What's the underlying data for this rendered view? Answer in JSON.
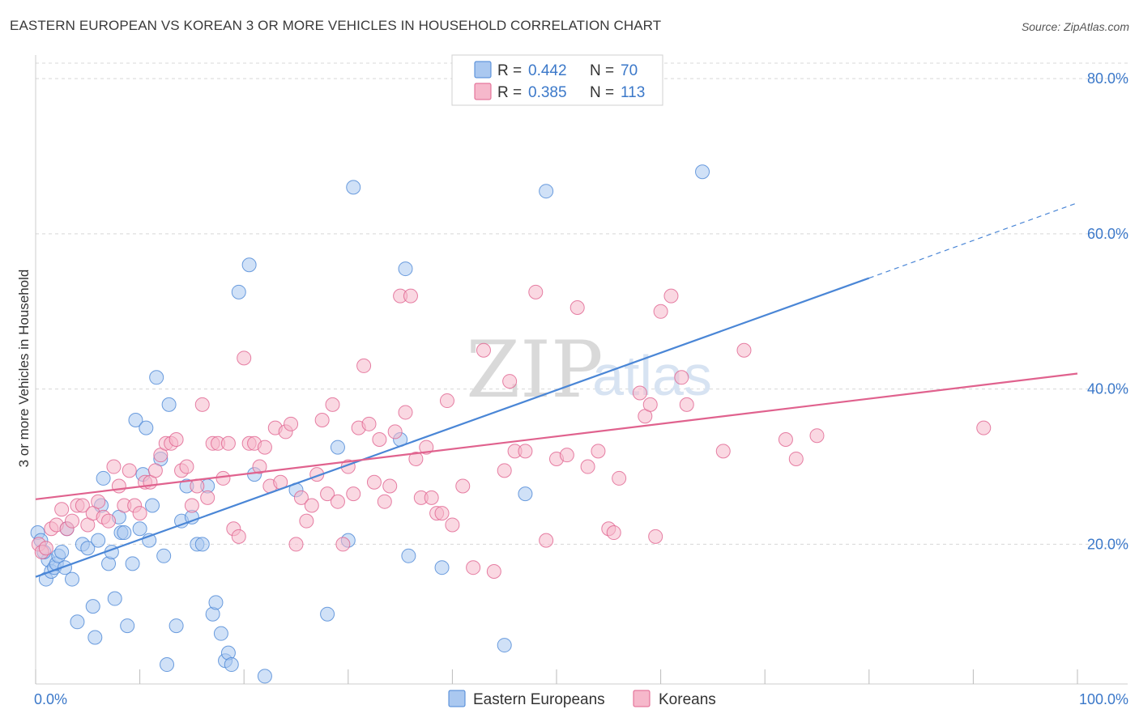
{
  "header": {
    "title": "EASTERN EUROPEAN VS KOREAN 3 OR MORE VEHICLES IN HOUSEHOLD CORRELATION CHART",
    "source": "Source: ZipAtlas.com"
  },
  "watermark": {
    "zip": "ZIP",
    "atlas": "atlas"
  },
  "legend": {
    "items": [
      {
        "r_label": "R =",
        "r_value": "0.442",
        "n_label": "N =",
        "n_value": "70",
        "color": "#aac8f0"
      },
      {
        "r_label": "R =",
        "r_value": "0.385",
        "n_label": "N =",
        "n_value": "113",
        "color": "#f6b8cb"
      }
    ]
  },
  "chart_data": {
    "type": "scatter",
    "xlabel": "",
    "ylabel": "3 or more Vehicles in Household",
    "xlim": [
      0,
      100
    ],
    "ylim": [
      2,
      82
    ],
    "x_tick_labels": [
      "0.0%",
      "100.0%"
    ],
    "y_ticks": [
      20,
      40,
      60,
      80
    ],
    "y_tick_labels": [
      "20.0%",
      "40.0%",
      "60.0%",
      "80.0%"
    ],
    "grid": true,
    "series": [
      {
        "name": "Eastern Europeans",
        "color": "#4a86d6",
        "fill": "#aac8f0",
        "points": [
          [
            0.2,
            21.5
          ],
          [
            0.5,
            20.5
          ],
          [
            1,
            15.5
          ],
          [
            1.2,
            18
          ],
          [
            1.5,
            16.5
          ],
          [
            1.8,
            17
          ],
          [
            2,
            17.5
          ],
          [
            2.2,
            18.5
          ],
          [
            2.5,
            19
          ],
          [
            2.8,
            17
          ],
          [
            3,
            22
          ],
          [
            3.5,
            15.5
          ],
          [
            4,
            10
          ],
          [
            4.5,
            20
          ],
          [
            5,
            19.5
          ],
          [
            5.5,
            12
          ],
          [
            5.7,
            8
          ],
          [
            6,
            20.5
          ],
          [
            6.3,
            25
          ],
          [
            6.5,
            28.5
          ],
          [
            7,
            17.5
          ],
          [
            7.3,
            19
          ],
          [
            7.6,
            13
          ],
          [
            8,
            23.5
          ],
          [
            8.2,
            21.5
          ],
          [
            8.5,
            21.5
          ],
          [
            8.8,
            9.5
          ],
          [
            9.3,
            17.5
          ],
          [
            9.6,
            36
          ],
          [
            10,
            22
          ],
          [
            10.3,
            29
          ],
          [
            10.6,
            35
          ],
          [
            10.9,
            20.5
          ],
          [
            11.2,
            25
          ],
          [
            11.6,
            41.5
          ],
          [
            12,
            31
          ],
          [
            12.3,
            18.5
          ],
          [
            12.6,
            4.5
          ],
          [
            12.8,
            38
          ],
          [
            13.5,
            9.5
          ],
          [
            14,
            23
          ],
          [
            14.5,
            27.5
          ],
          [
            15,
            23.5
          ],
          [
            15.5,
            20
          ],
          [
            16,
            20
          ],
          [
            16.5,
            27.5
          ],
          [
            17,
            11
          ],
          [
            17.3,
            12.5
          ],
          [
            17.8,
            8.5
          ],
          [
            18.2,
            5
          ],
          [
            18.5,
            6
          ],
          [
            18.8,
            4.5
          ],
          [
            19.5,
            52.5
          ],
          [
            20.5,
            56
          ],
          [
            21,
            29
          ],
          [
            22,
            3
          ],
          [
            25,
            27
          ],
          [
            28,
            11
          ],
          [
            29,
            32.5
          ],
          [
            30,
            20.5
          ],
          [
            30.5,
            66
          ],
          [
            35,
            33.5
          ],
          [
            35.5,
            55.5
          ],
          [
            35.8,
            18.5
          ],
          [
            39,
            17
          ],
          [
            45,
            7
          ],
          [
            47,
            26.5
          ],
          [
            49,
            65.5
          ],
          [
            64,
            68
          ],
          [
            0.8,
            19
          ]
        ]
      },
      {
        "name": "Koreans",
        "color": "#e0628e",
        "fill": "#f6b8cb",
        "points": [
          [
            0.3,
            20
          ],
          [
            0.6,
            19
          ],
          [
            1,
            19.5
          ],
          [
            1.5,
            22
          ],
          [
            2,
            22.5
          ],
          [
            2.5,
            24.5
          ],
          [
            3,
            22
          ],
          [
            3.5,
            23
          ],
          [
            4,
            25
          ],
          [
            4.5,
            25
          ],
          [
            5,
            22.5
          ],
          [
            5.5,
            24
          ],
          [
            6,
            25.5
          ],
          [
            6.5,
            23.5
          ],
          [
            7,
            23
          ],
          [
            7.5,
            30
          ],
          [
            8,
            27.5
          ],
          [
            8.5,
            25
          ],
          [
            9,
            29.5
          ],
          [
            9.5,
            25
          ],
          [
            10,
            24
          ],
          [
            10.5,
            28
          ],
          [
            11,
            28
          ],
          [
            11.5,
            29.5
          ],
          [
            12,
            31.5
          ],
          [
            12.5,
            33
          ],
          [
            13,
            33
          ],
          [
            13.5,
            33.5
          ],
          [
            14,
            29.5
          ],
          [
            14.5,
            30
          ],
          [
            15,
            25
          ],
          [
            15.5,
            27.5
          ],
          [
            16,
            38
          ],
          [
            16.5,
            26
          ],
          [
            17,
            33
          ],
          [
            17.5,
            33
          ],
          [
            18,
            28.5
          ],
          [
            18.5,
            33
          ],
          [
            19,
            22
          ],
          [
            19.5,
            21
          ],
          [
            20,
            44
          ],
          [
            20.5,
            33
          ],
          [
            21,
            33
          ],
          [
            21.5,
            30
          ],
          [
            22,
            32.5
          ],
          [
            22.5,
            27.5
          ],
          [
            23,
            35
          ],
          [
            23.5,
            28
          ],
          [
            24,
            34.5
          ],
          [
            24.5,
            35.5
          ],
          [
            25,
            20
          ],
          [
            25.5,
            26
          ],
          [
            26,
            23
          ],
          [
            26.5,
            25
          ],
          [
            27,
            29
          ],
          [
            27.5,
            36
          ],
          [
            28,
            26.5
          ],
          [
            28.5,
            38
          ],
          [
            29,
            25.5
          ],
          [
            29.5,
            20
          ],
          [
            30,
            30
          ],
          [
            30.5,
            26.5
          ],
          [
            31,
            35
          ],
          [
            31.5,
            43
          ],
          [
            32,
            35.5
          ],
          [
            32.5,
            28
          ],
          [
            33,
            33.5
          ],
          [
            33.5,
            25.5
          ],
          [
            34,
            27.5
          ],
          [
            34.5,
            34.5
          ],
          [
            35,
            52
          ],
          [
            35.5,
            37
          ],
          [
            36,
            52
          ],
          [
            36.5,
            31
          ],
          [
            37,
            26
          ],
          [
            37.5,
            32.5
          ],
          [
            38,
            26
          ],
          [
            38.5,
            24
          ],
          [
            39,
            24
          ],
          [
            39.5,
            38.5
          ],
          [
            40,
            22.5
          ],
          [
            41,
            27.5
          ],
          [
            42,
            17
          ],
          [
            43,
            45
          ],
          [
            44,
            16.5
          ],
          [
            45,
            29.5
          ],
          [
            45.5,
            41
          ],
          [
            46,
            32
          ],
          [
            47,
            32
          ],
          [
            48,
            52.5
          ],
          [
            49,
            20.5
          ],
          [
            50,
            31
          ],
          [
            51,
            31.5
          ],
          [
            52,
            50.5
          ],
          [
            53,
            30
          ],
          [
            54,
            32
          ],
          [
            55,
            22
          ],
          [
            55.5,
            21.5
          ],
          [
            56,
            28.5
          ],
          [
            58,
            39.5
          ],
          [
            58.5,
            36.5
          ],
          [
            59,
            38
          ],
          [
            59.5,
            21
          ],
          [
            60,
            50
          ],
          [
            61,
            52
          ],
          [
            62,
            41.5
          ],
          [
            62.5,
            38
          ],
          [
            66,
            32
          ],
          [
            72,
            33.5
          ],
          [
            73,
            31
          ],
          [
            75,
            34
          ],
          [
            91,
            35
          ],
          [
            68,
            45
          ]
        ]
      }
    ],
    "trendlines": [
      {
        "series": "Eastern Europeans",
        "x0": 0,
        "y0": 15.8,
        "x1": 80,
        "y1": 54.3,
        "dashed_to_x": 100,
        "dashed_to_y": 64
      },
      {
        "series": "Koreans",
        "x0": 0,
        "y0": 25.8,
        "x1": 100,
        "y1": 42
      }
    ]
  }
}
